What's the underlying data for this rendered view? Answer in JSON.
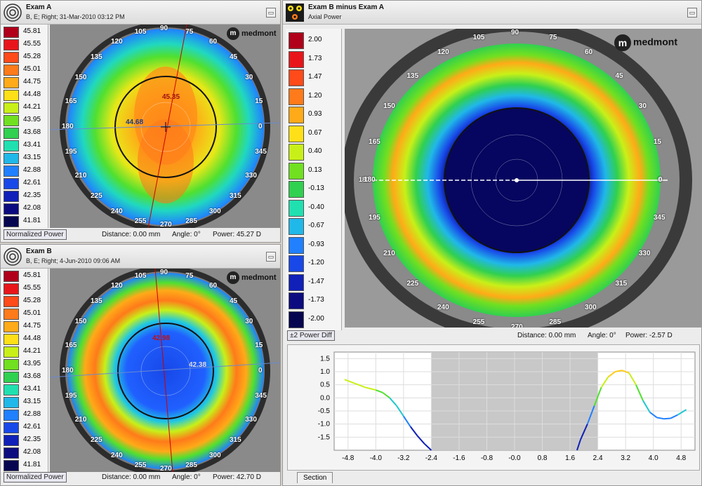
{
  "legend_values": [
    "45.81",
    "45.55",
    "45.28",
    "45.01",
    "44.75",
    "44.48",
    "44.21",
    "43.95",
    "43.68",
    "43.41",
    "43.15",
    "42.88",
    "42.61",
    "42.35",
    "42.08",
    "41.81"
  ],
  "legend_colors": [
    "#b0001a",
    "#e8161a",
    "#ff4a1a",
    "#ff7a1a",
    "#ffaa18",
    "#ffe018",
    "#c8f018",
    "#70e020",
    "#30d050",
    "#20e0b0",
    "#20b8e8",
    "#2080ff",
    "#1848e8",
    "#1020b8",
    "#0c0c80",
    "#060650"
  ],
  "diff_values": [
    "2.00",
    "1.73",
    "1.47",
    "1.20",
    "0.93",
    "0.67",
    "0.40",
    "0.13",
    "-0.13",
    "-0.40",
    "-0.67",
    "-0.93",
    "-1.20",
    "-1.47",
    "-1.73",
    "-2.00"
  ],
  "diff_colors": [
    "#b0001a",
    "#e8161a",
    "#ff4a1a",
    "#ff7a1a",
    "#ffaa18",
    "#ffe018",
    "#c8f018",
    "#70e020",
    "#30d050",
    "#20e0b0",
    "#20b8e8",
    "#2080ff",
    "#1848e8",
    "#1020b8",
    "#0c0c80",
    "#060650"
  ],
  "angles": [
    "90",
    "75",
    "60",
    "45",
    "30",
    "15",
    "0",
    "345",
    "330",
    "315",
    "300",
    "285",
    "270",
    "255",
    "240",
    "225",
    "210",
    "195",
    "180",
    "165",
    "150",
    "135",
    "120",
    "105"
  ],
  "brand": "medmont",
  "exam_a": {
    "title": "Exam A",
    "subtitle": "B, E; Right; 31-Mar-2010 03:12 PM",
    "mode_button": "Normalized Power",
    "distance": "Distance:  0.00 mm",
    "angle": "Angle:  0°",
    "power": "Power:  45.27 D",
    "value_center": "45.35",
    "value_left": "44.68"
  },
  "exam_b": {
    "title": "Exam B",
    "subtitle": "B, E; Right; 4-Jun-2010 09:06 AM",
    "mode_button": "Normalized Power",
    "distance": "Distance:  0.00 mm",
    "angle": "Angle:  0°",
    "power": "Power:  42.70 D",
    "value_center": "42.98",
    "value_right": "42.38"
  },
  "diff": {
    "title": "Exam B minus Exam A",
    "subtitle": "Axial Power",
    "mode_button": "±2 Power Diff",
    "distance": "Distance:  0.00 mm",
    "angle": "Angle:  0°",
    "power": "Power:  -2.57 D",
    "left_label": "180",
    "right_label": "0"
  },
  "chart_data": {
    "type": "line",
    "x_ticks": [
      "-4.8",
      "-4.0",
      "-3.2",
      "-2.4",
      "-1.6",
      "-0.8",
      "-0.0",
      "0.8",
      "1.6",
      "2.4",
      "3.2",
      "4.0",
      "4.8"
    ],
    "y_ticks": [
      "1.5",
      "1.0",
      "0.5",
      "0.0",
      "-0.5",
      "-1.0",
      "-1.5"
    ],
    "xlim": [
      -5.2,
      5.2
    ],
    "ylim": [
      -2.0,
      1.75
    ],
    "shaded_region": [
      -2.4,
      2.4
    ],
    "x": [
      -4.9,
      -4.6,
      -4.3,
      -4.0,
      -3.8,
      -3.6,
      -3.4,
      -3.2,
      -3.0,
      -2.8,
      -2.6,
      -2.4,
      1.8,
      1.9,
      2.1,
      2.3,
      2.5,
      2.7,
      2.9,
      3.1,
      3.3,
      3.5,
      3.7,
      3.9,
      4.1,
      4.3,
      4.5,
      4.7,
      4.95
    ],
    "y": [
      0.7,
      0.55,
      0.4,
      0.3,
      0.2,
      0.0,
      -0.3,
      -0.7,
      -1.1,
      -1.45,
      -1.75,
      -2.0,
      -2.0,
      -1.6,
      -1.0,
      -0.3,
      0.4,
      0.8,
      1.0,
      1.05,
      0.95,
      0.5,
      -0.1,
      -0.55,
      -0.75,
      -0.8,
      -0.78,
      -0.65,
      -0.45
    ],
    "tab_label": "Section"
  }
}
